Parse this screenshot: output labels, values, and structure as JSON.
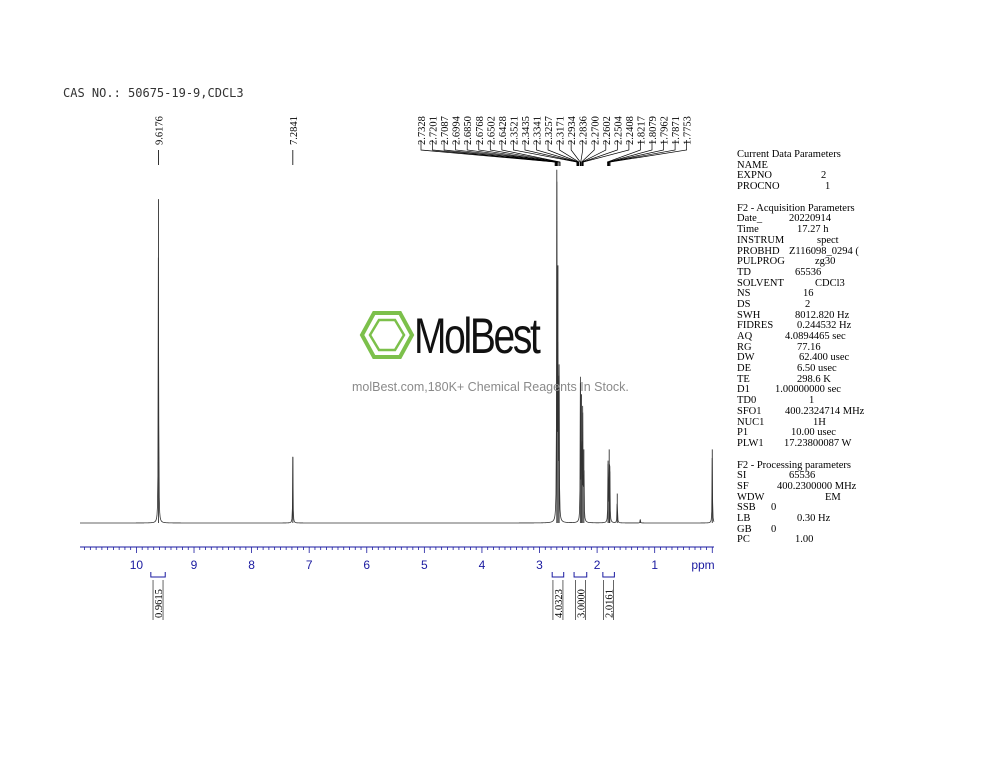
{
  "header": {
    "sample": "CAS NO.: 50675-19-9,CDCL3"
  },
  "watermark": {
    "name": "MolBest",
    "tagline": "molBest.com,180K+ Chemical Reagents In Stock.",
    "accent": "#7cc04b"
  },
  "chart_data": {
    "type": "line",
    "title": "",
    "xlabel": "ppm",
    "x_reversed": true,
    "xlim": [
      10.98,
      -0.03
    ],
    "x_ticks": [
      10,
      9,
      8,
      7,
      6,
      5,
      4,
      3,
      2,
      1
    ],
    "axis_color": "#1a1aa0",
    "peaks": [
      {
        "ppm": 9.6176,
        "height": 0.88
      },
      {
        "ppm": 7.2841,
        "height": 0.18
      },
      {
        "ppm": 2.7,
        "height": 0.96
      },
      {
        "ppm": 2.68,
        "height": 0.7
      },
      {
        "ppm": 2.66,
        "height": 0.4
      },
      {
        "ppm": 2.29,
        "height": 0.38
      },
      {
        "ppm": 2.27,
        "height": 0.35
      },
      {
        "ppm": 2.25,
        "height": 0.3
      },
      {
        "ppm": 2.23,
        "height": 0.2
      },
      {
        "ppm": 1.81,
        "height": 0.16
      },
      {
        "ppm": 1.79,
        "height": 0.2
      },
      {
        "ppm": 1.78,
        "height": 0.14
      },
      {
        "ppm": 1.65,
        "height": 0.08
      },
      {
        "ppm": 1.25,
        "height": 0.01
      },
      {
        "ppm": 0.0,
        "height": 0.2
      }
    ],
    "peak_labels": [
      {
        "group": "left",
        "values": [
          "9.6176"
        ],
        "target_ppm": 9.6176
      },
      {
        "group": "left2",
        "values": [
          "7.2841"
        ],
        "target_ppm": 7.2841
      },
      {
        "group": "cluster",
        "values": [
          "2.7328",
          "2.7201",
          "2.7087",
          "2.6994",
          "2.6850",
          "2.6768",
          "2.6502",
          "2.6428",
          "2.3521",
          "2.3435",
          "2.3341",
          "2.3257",
          "2.3171",
          "2.2934",
          "2.2836",
          "2.2700",
          "2.2602",
          "2.2504",
          "2.2408",
          "1.8217",
          "1.8079",
          "1.7962",
          "1.7871",
          "1.7753"
        ]
      }
    ],
    "integrals": [
      {
        "value": "0.9615",
        "from": 9.75,
        "to": 9.5
      },
      {
        "value": "4.0323",
        "from": 2.78,
        "to": 2.58
      },
      {
        "value": "3.0000",
        "from": 2.4,
        "to": 2.18
      },
      {
        "value": "2.0161",
        "from": 1.9,
        "to": 1.7
      }
    ]
  },
  "params": {
    "sections": [
      {
        "title": "Current Data Parameters",
        "rows": [
          [
            "NAME",
            ""
          ],
          [
            "EXPNO",
            "2"
          ],
          [
            "PROCNO",
            "1"
          ]
        ]
      },
      {
        "title": "F2 - Acquisition Parameters",
        "rows": [
          [
            "Date_",
            "20220914"
          ],
          [
            "Time",
            "17.27 h"
          ],
          [
            "INSTRUM",
            "spect"
          ],
          [
            "PROBHD",
            "Z116098_0294 ("
          ],
          [
            "PULPROG",
            "zg30"
          ],
          [
            "TD",
            "65536"
          ],
          [
            "SOLVENT",
            "CDCl3"
          ],
          [
            "NS",
            "16"
          ],
          [
            "DS",
            "2"
          ],
          [
            "SWH",
            "8012.820 Hz"
          ],
          [
            "FIDRES",
            "0.244532 Hz"
          ],
          [
            "AQ",
            "4.0894465 sec"
          ],
          [
            "RG",
            "77.16"
          ],
          [
            "DW",
            "62.400 usec"
          ],
          [
            "DE",
            "6.50 usec"
          ],
          [
            "TE",
            "298.6 K"
          ],
          [
            "D1",
            "1.00000000 sec"
          ],
          [
            "TD0",
            "1"
          ],
          [
            "SFO1",
            "400.2324714 MHz"
          ],
          [
            "NUC1",
            "1H"
          ],
          [
            "P1",
            "10.00 usec"
          ],
          [
            "PLW1",
            "17.23800087 W"
          ]
        ]
      },
      {
        "title": "F2 - Processing parameters",
        "rows": [
          [
            "SI",
            "65536"
          ],
          [
            "SF",
            "400.2300000 MHz"
          ],
          [
            "WDW",
            "EM"
          ],
          [
            "SSB",
            "0"
          ],
          [
            "LB",
            "0.30 Hz"
          ],
          [
            "GB",
            "0"
          ],
          [
            "PC",
            "1.00"
          ]
        ]
      }
    ]
  }
}
